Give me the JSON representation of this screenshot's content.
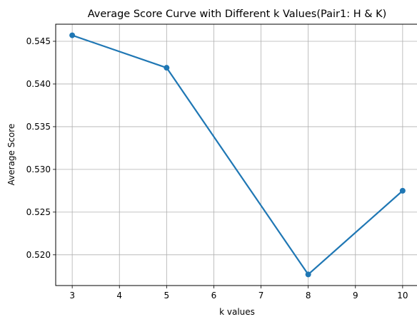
{
  "chart_data": {
    "type": "line",
    "title": "Average Score Curve with Different k Values(Pair1: H & K)",
    "xlabel": "k values",
    "ylabel": "Average Score",
    "x": [
      3,
      5,
      8,
      10
    ],
    "series": [
      {
        "values": [
          0.5457,
          0.5419,
          0.5177,
          0.5275
        ]
      }
    ],
    "xlim": [
      2.65,
      10.35
    ],
    "ylim": [
      0.5164,
      0.547
    ],
    "xticks": [
      3,
      4,
      5,
      6,
      7,
      8,
      9,
      10
    ],
    "xtick_labels": [
      "3",
      "4",
      "5",
      "6",
      "7",
      "8",
      "9",
      "10"
    ],
    "yticks": [
      0.52,
      0.525,
      0.53,
      0.535,
      0.54,
      0.545
    ],
    "ytick_labels": [
      "0.520",
      "0.525",
      "0.530",
      "0.535",
      "0.540",
      "0.545"
    ],
    "grid": true,
    "line_color": "#1f77b4",
    "grid_color": "#b0b0b0"
  }
}
